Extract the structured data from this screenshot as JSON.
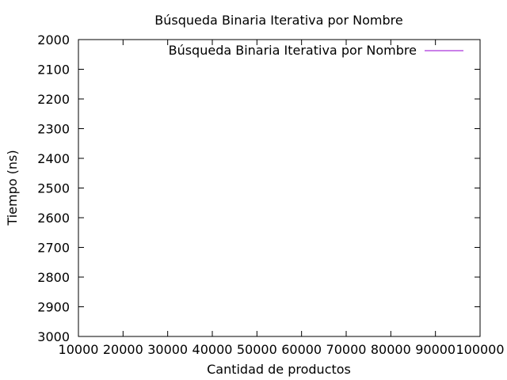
{
  "chart_data": {
    "type": "line",
    "title": "Búsqueda Binaria Iterativa por Nombre",
    "xlabel": "Cantidad de productos",
    "ylabel": "Tiempo (ns)",
    "xlim": [
      10000,
      100000
    ],
    "ylim": [
      3000,
      2000
    ],
    "y_reversed": true,
    "x_ticks": [
      10000,
      20000,
      30000,
      40000,
      50000,
      60000,
      70000,
      80000,
      90000,
      100000
    ],
    "y_ticks": [
      2000,
      2100,
      2200,
      2300,
      2400,
      2500,
      2600,
      2700,
      2800,
      2900,
      3000
    ],
    "grid": false,
    "legend_position": "top-right",
    "series": [
      {
        "name": "Búsqueda Binaria Iterativa por Nombre",
        "color": "#9400d3",
        "x": [],
        "y": []
      }
    ]
  }
}
